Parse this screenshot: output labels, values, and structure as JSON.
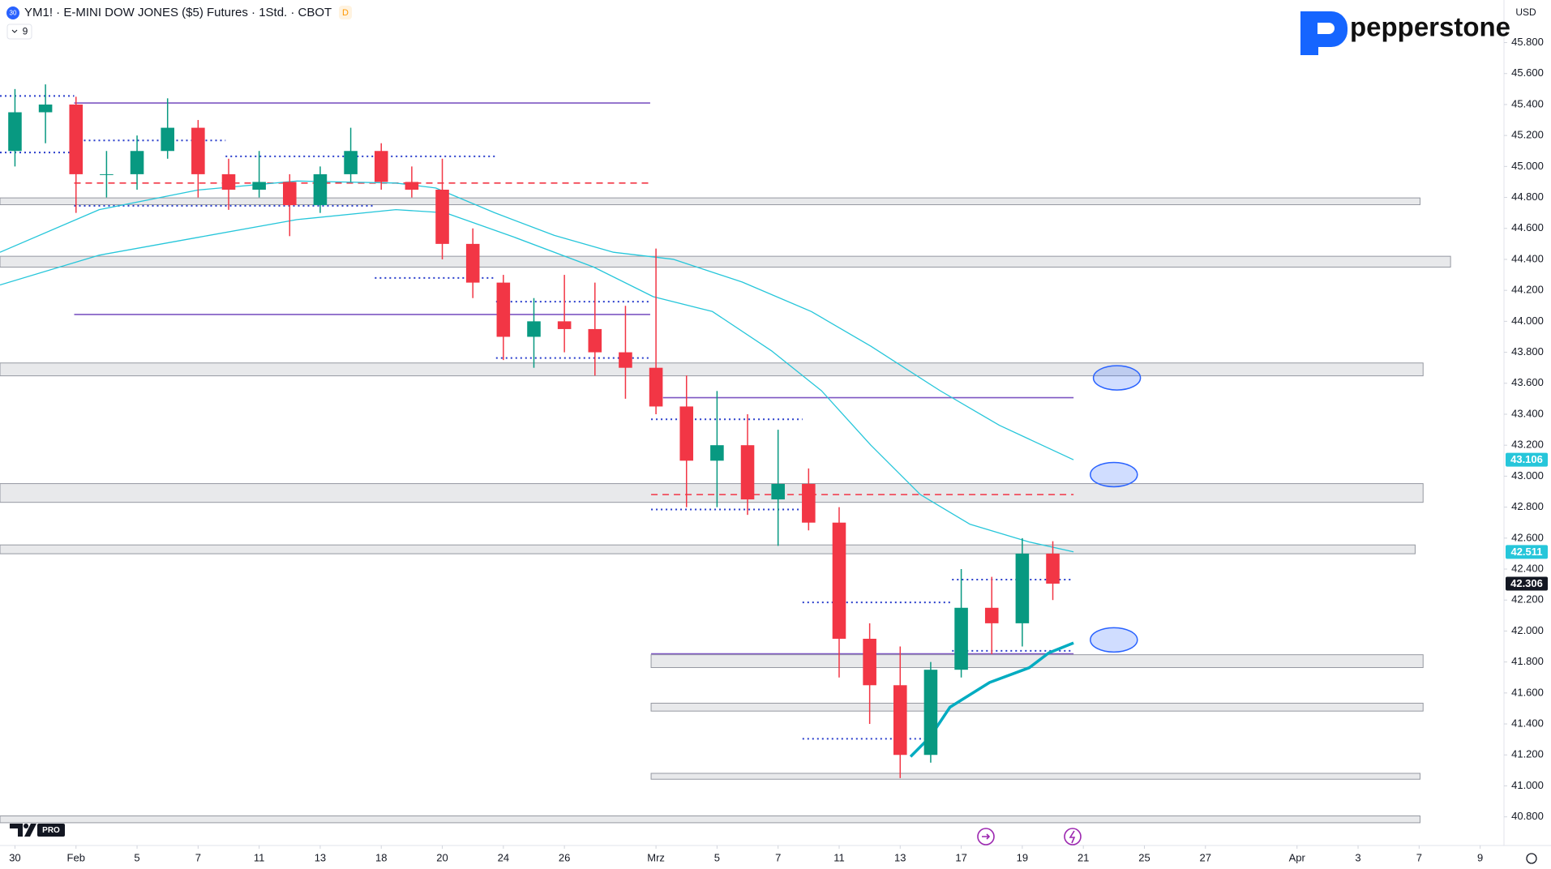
{
  "chart_data": {
    "type": "candlestick",
    "title": "YM1! · E-MINI DOW JONES ($5) Futures · 1Std. · CBOT",
    "symbol_badge": "30",
    "status_badge": "D",
    "indicator_count": "9",
    "currency": "USD",
    "brand": "pepperstone",
    "logo_badge": "PRO",
    "x": [
      0,
      1,
      2,
      3,
      4,
      5,
      6,
      7,
      8,
      9,
      10,
      11,
      12,
      13,
      14,
      15,
      16,
      17,
      18,
      19,
      20,
      21,
      22,
      23,
      24,
      25,
      26,
      27,
      28,
      29,
      30,
      31,
      32,
      33,
      34
    ],
    "open": [
      45100,
      45350,
      45400,
      44950,
      44950,
      45100,
      45250,
      44950,
      44850,
      44900,
      44750,
      44950,
      45100,
      44900,
      44850,
      44500,
      44250,
      43900,
      44000,
      43950,
      43800,
      43700,
      43450,
      43100,
      43200,
      42850,
      42950,
      42700,
      41950,
      41650,
      41200,
      41750,
      42150,
      42050,
      42500
    ],
    "high": [
      45500,
      45530,
      45450,
      45100,
      45200,
      45440,
      45300,
      45050,
      45100,
      44950,
      45000,
      45250,
      45150,
      45000,
      45050,
      44600,
      44300,
      44150,
      44300,
      44250,
      44100,
      44470,
      43650,
      43550,
      43400,
      43300,
      43050,
      42800,
      42050,
      41900,
      41800,
      42400,
      42350,
      42600,
      42580
    ],
    "low": [
      45000,
      45150,
      44700,
      44800,
      44850,
      45050,
      44800,
      44720,
      44800,
      44550,
      44700,
      44900,
      44850,
      44800,
      44400,
      44150,
      43750,
      43700,
      43800,
      43650,
      43500,
      43400,
      42800,
      42800,
      42750,
      42550,
      42650,
      41700,
      41400,
      41050,
      41150,
      41700,
      41850,
      41900,
      42200
    ],
    "close": [
      45350,
      45400,
      44950,
      44950,
      45100,
      45250,
      44950,
      44850,
      44900,
      44750,
      44950,
      45100,
      44900,
      44850,
      44500,
      44250,
      43900,
      44000,
      43950,
      43800,
      43700,
      43450,
      43100,
      43200,
      42850,
      42950,
      42700,
      41950,
      41650,
      41200,
      41750,
      42150,
      42050,
      42500,
      42306
    ],
    "up_color": "#089981",
    "down_color": "#f23645",
    "xlim": [
      -0.49,
      48.78
    ],
    "xticks": [
      {
        "value": 0,
        "label": "30"
      },
      {
        "value": 2,
        "label": "Feb"
      },
      {
        "value": 4,
        "label": "5"
      },
      {
        "value": 6,
        "label": "7"
      },
      {
        "value": 8,
        "label": "11"
      },
      {
        "value": 10,
        "label": "13"
      },
      {
        "value": 12,
        "label": "18"
      },
      {
        "value": 14,
        "label": "20"
      },
      {
        "value": 16,
        "label": "24"
      },
      {
        "value": 18,
        "label": "26"
      },
      {
        "value": 21,
        "label": "Mrz"
      },
      {
        "value": 23,
        "label": "5"
      },
      {
        "value": 25,
        "label": "7"
      },
      {
        "value": 27,
        "label": "11"
      },
      {
        "value": 29,
        "label": "13"
      },
      {
        "value": 31,
        "label": "17"
      },
      {
        "value": 33,
        "label": "19"
      },
      {
        "value": 35,
        "label": "21"
      },
      {
        "value": 37,
        "label": "25"
      },
      {
        "value": 39,
        "label": "27"
      },
      {
        "value": 42,
        "label": "Apr"
      },
      {
        "value": 44,
        "label": "3"
      },
      {
        "value": 46,
        "label": "7"
      },
      {
        "value": 48,
        "label": "9"
      }
    ],
    "ylim": [
      40615,
      46075
    ],
    "yticks": [
      {
        "value": 40800,
        "label": "40.800"
      },
      {
        "value": 41000,
        "label": "41.000"
      },
      {
        "value": 41200,
        "label": "41.200"
      },
      {
        "value": 41400,
        "label": "41.400"
      },
      {
        "value": 41600,
        "label": "41.600"
      },
      {
        "value": 41800,
        "label": "41.800"
      },
      {
        "value": 42000,
        "label": "42.000"
      },
      {
        "value": 42200,
        "label": "42.200"
      },
      {
        "value": 42400,
        "label": "42.400"
      },
      {
        "value": 42600,
        "label": "42.600"
      },
      {
        "value": 42800,
        "label": "42.800"
      },
      {
        "value": 43000,
        "label": "43.000"
      },
      {
        "value": 43200,
        "label": "43.200"
      },
      {
        "value": 43400,
        "label": "43.400"
      },
      {
        "value": 43600,
        "label": "43.600"
      },
      {
        "value": 43800,
        "label": "43.800"
      },
      {
        "value": 44000,
        "label": "44.000"
      },
      {
        "value": 44200,
        "label": "44.200"
      },
      {
        "value": 44400,
        "label": "44.400"
      },
      {
        "value": 44600,
        "label": "44.600"
      },
      {
        "value": 44800,
        "label": "44.800"
      },
      {
        "value": 45000,
        "label": "45.000"
      },
      {
        "value": 45200,
        "label": "45.200"
      },
      {
        "value": 45400,
        "label": "45.400"
      },
      {
        "value": 45600,
        "label": "45.600"
      },
      {
        "value": 45800,
        "label": "45.800"
      }
    ],
    "price_labels": [
      {
        "value": 43106,
        "label": "43.106",
        "color": "#26c6da"
      },
      {
        "value": 42511,
        "label": "42.511",
        "color": "#26c6da"
      },
      {
        "value": 42306,
        "label": "42.306",
        "color": "#131722"
      }
    ],
    "moving_averages": [
      {
        "color": "#26c6da",
        "width": 1.3,
        "x": [
          -0.49,
          2.76,
          6.0,
          9.24,
          12.48,
          13.78,
          15.72,
          17.67,
          19.61,
          21.56,
          23.82,
          26.09,
          28.04,
          30.31,
          32.25,
          34.68
        ],
        "values": [
          44446,
          44721,
          44848,
          44906,
          44893,
          44861,
          44701,
          44555,
          44446,
          44401,
          44254,
          44063,
          43839,
          43552,
          43328,
          43106
        ]
      },
      {
        "color": "#26c6da",
        "width": 1.3,
        "x": [
          -0.49,
          2.76,
          6.0,
          9.24,
          12.48,
          14.1,
          16.37,
          18.96,
          20.91,
          22.85,
          24.8,
          26.42,
          28.04,
          29.66,
          31.28,
          33.23,
          34.68
        ],
        "values": [
          44235,
          44427,
          44542,
          44657,
          44721,
          44701,
          44542,
          44350,
          44159,
          44063,
          43807,
          43552,
          43200,
          42881,
          42690,
          42575,
          42511
        ]
      },
      {
        "color": "#00acc1",
        "width": 3.5,
        "x": [
          29.34,
          29.98,
          30.63,
          31.93,
          33.23,
          33.87,
          34.68
        ],
        "values": [
          41189,
          41316,
          41508,
          41668,
          41763,
          41859,
          41923
        ]
      }
    ],
    "zones": [
      {
        "x": [
          -0.49,
          46.03
        ],
        "range": [
          44753,
          44797
        ]
      },
      {
        "x": [
          -0.49,
          47.03
        ],
        "range": [
          44350,
          44420
        ]
      },
      {
        "x": [
          -0.49,
          46.13
        ],
        "range": [
          43648,
          43731
        ]
      },
      {
        "x": [
          -0.49,
          46.13
        ],
        "range": [
          42831,
          42952
        ]
      },
      {
        "x": [
          -0.49,
          45.87
        ],
        "range": [
          42499,
          42556
        ]
      },
      {
        "x": [
          20.84,
          46.13
        ],
        "range": [
          41764,
          41847
        ]
      },
      {
        "x": [
          20.84,
          46.13
        ],
        "range": [
          41483,
          41534
        ]
      },
      {
        "x": [
          20.84,
          46.03
        ],
        "range": [
          41043,
          41081
        ]
      },
      {
        "x": [
          -0.49,
          46.03
        ],
        "range": [
          40762,
          40806
        ]
      }
    ],
    "levels": [
      {
        "x": [
          1.94,
          20.81
        ],
        "value": 45410,
        "color": "#7e57c2",
        "dash": false
      },
      {
        "x": [
          1.94,
          20.81
        ],
        "value": 44044,
        "color": "#7e57c2",
        "dash": false
      },
      {
        "x": [
          21.23,
          34.68
        ],
        "value": 43507,
        "color": "#7e57c2",
        "dash": false
      },
      {
        "x": [
          20.84,
          34.68
        ],
        "value": 41853,
        "color": "#7e57c2",
        "dash": false
      },
      {
        "x": [
          1.94,
          20.81
        ],
        "value": 44893,
        "color": "#f23645",
        "dash": true
      },
      {
        "x": [
          20.84,
          34.68
        ],
        "value": 42881,
        "color": "#f23645",
        "dash": true
      }
    ],
    "dotted_levels": {
      "color": "#283dcc",
      "items": [
        {
          "x": [
            -0.49,
            1.94
          ],
          "value": 45455
        },
        {
          "x": [
            -0.49,
            1.94
          ],
          "value": 45090
        },
        {
          "x": [
            1.94,
            6.9
          ],
          "value": 45168
        },
        {
          "x": [
            6.9,
            15.76
          ],
          "value": 45065
        },
        {
          "x": [
            1.94,
            11.79
          ],
          "value": 44746
        },
        {
          "x": [
            11.79,
            15.76
          ],
          "value": 44280
        },
        {
          "x": [
            15.76,
            20.81
          ],
          "value": 44127
        },
        {
          "x": [
            15.76,
            20.81
          ],
          "value": 43763
        },
        {
          "x": [
            20.84,
            25.8
          ],
          "value": 43367
        },
        {
          "x": [
            20.84,
            25.8
          ],
          "value": 42785
        },
        {
          "x": [
            25.8,
            30.7
          ],
          "value": 42185
        },
        {
          "x": [
            25.8,
            29.87
          ],
          "value": 41304
        },
        {
          "x": [
            30.7,
            34.68
          ],
          "value": 42332
        },
        {
          "x": [
            30.7,
            34.68
          ],
          "value": 41872
        }
      ]
    },
    "ellipses": [
      {
        "x": 36.1,
        "value": 43635
      },
      {
        "x": 36.0,
        "value": 43010
      },
      {
        "x": 36.0,
        "value": 41943
      }
    ]
  }
}
